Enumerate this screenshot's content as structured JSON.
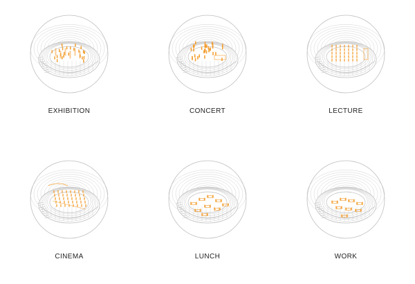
{
  "colors": {
    "accent": "#f39c2b",
    "line": "#bdbdbd",
    "background": "#ffffff"
  },
  "panels": [
    {
      "label": "EXHIBITION",
      "mode": "exhibition"
    },
    {
      "label": "CONCERT",
      "mode": "concert"
    },
    {
      "label": "LECTURE",
      "mode": "lecture"
    },
    {
      "label": "CINEMA",
      "mode": "cinema"
    },
    {
      "label": "LUNCH",
      "mode": "lunch"
    },
    {
      "label": "WORK",
      "mode": "work"
    }
  ]
}
